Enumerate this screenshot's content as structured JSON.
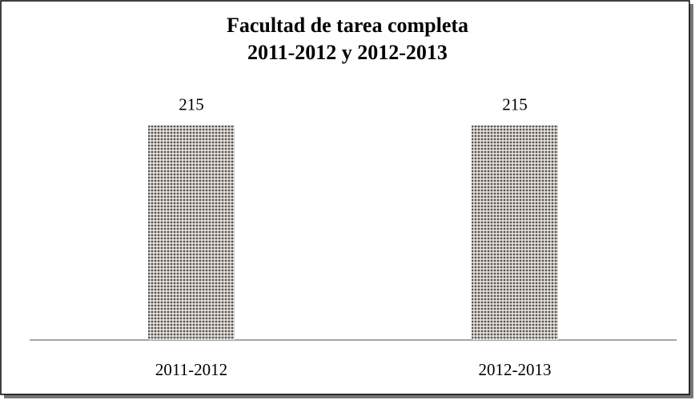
{
  "chart_data": {
    "type": "bar",
    "title": [
      "Facultad de tarea completa",
      "2011-2012 y 2012-2013"
    ],
    "categories": [
      "2011-2012",
      "2012-2013"
    ],
    "values": [
      215,
      215
    ],
    "color": "#5b5550",
    "ylim": [
      0,
      250
    ]
  }
}
